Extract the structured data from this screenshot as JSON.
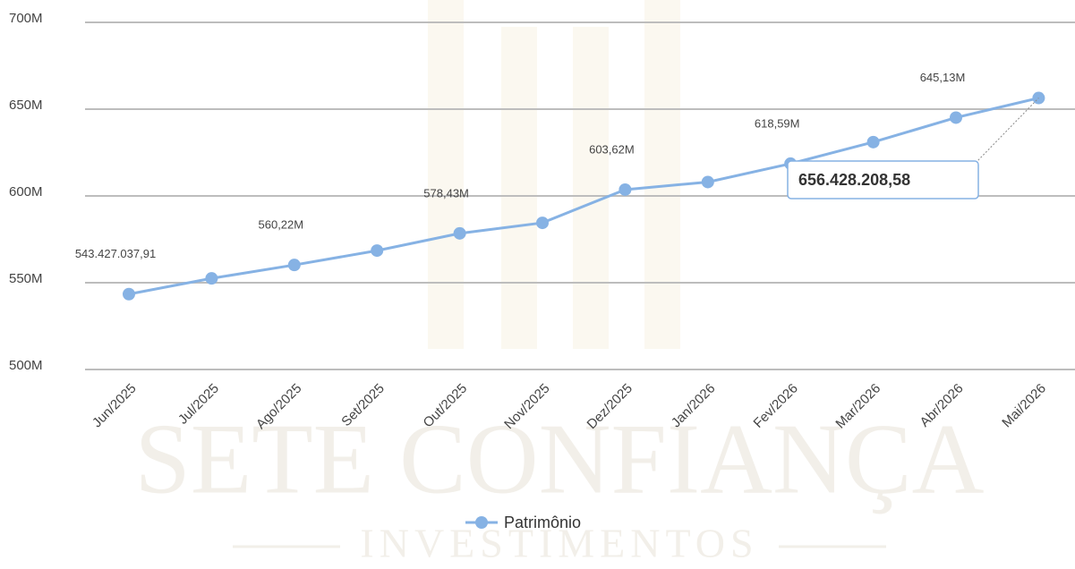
{
  "chart_data": {
    "type": "line",
    "categories": [
      "Jun/2025",
      "Jul/2025",
      "Ago/2025",
      "Set/2025",
      "Out/2025",
      "Nov/2025",
      "Dez/2025",
      "Jan/2026",
      "Fev/2026",
      "Mar/2026",
      "Abr/2026",
      "Mai/2026"
    ],
    "series": [
      {
        "name": "Patrimônio",
        "color": "#86b2e4",
        "values": [
          543427037.91,
          552500000,
          560220000,
          568500000,
          578430000,
          584500000,
          603620000,
          608000000,
          618590000,
          631000000,
          645130000,
          656428208.58
        ],
        "value_labels": [
          "543.427.037,91",
          null,
          "560,22M",
          null,
          "578,43M",
          null,
          "603,62M",
          null,
          "618,59M",
          null,
          "645,13M",
          "656.428.208,58"
        ]
      }
    ],
    "ylim": [
      500000000,
      700000000
    ],
    "yticks": [
      {
        "value": 500000000,
        "label": "500M"
      },
      {
        "value": 550000000,
        "label": "550M"
      },
      {
        "value": 600000000,
        "label": "600M"
      },
      {
        "value": 650000000,
        "label": "650M"
      },
      {
        "value": 700000000,
        "label": "700M"
      }
    ],
    "grid": true,
    "legend": "bottom",
    "watermark": {
      "title": "SETE CONFIANÇA",
      "subtitle": "INVESTIMENTOS"
    }
  }
}
